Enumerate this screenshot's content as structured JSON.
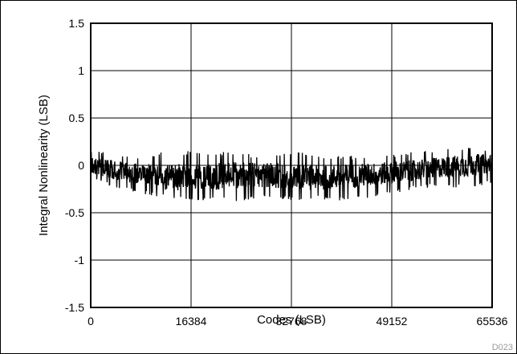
{
  "chart_data": {
    "type": "line",
    "title": "",
    "xlabel": "Codes (LSB)",
    "ylabel": "Integral Nonlinearity (LSB)",
    "xlim": [
      0,
      65536
    ],
    "ylim": [
      -1.5,
      1.5
    ],
    "x_ticks": [
      "0",
      "16384",
      "32768",
      "49152",
      "65536"
    ],
    "y_ticks": [
      "1.5",
      "1",
      "0.5",
      "0",
      "-0.5",
      "-1",
      "-1.5"
    ],
    "grid": true,
    "figure_code": "D023",
    "series": [
      {
        "color": "#000000",
        "x": [
          0,
          4096,
          8192,
          12288,
          16384,
          20480,
          24576,
          28672,
          32768,
          36864,
          40960,
          45056,
          49152,
          53248,
          57344,
          61440,
          65536
        ],
        "upper": [
          0.18,
          0.13,
          0.1,
          0.15,
          0.15,
          0.15,
          0.12,
          0.12,
          0.15,
          0.12,
          0.1,
          0.1,
          0.12,
          0.15,
          0.18,
          0.2,
          0.17
        ],
        "lower": [
          -0.12,
          -0.25,
          -0.3,
          -0.35,
          -0.38,
          -0.37,
          -0.38,
          -0.35,
          -0.37,
          -0.35,
          -0.38,
          -0.35,
          -0.3,
          -0.25,
          -0.22,
          -0.25,
          -0.18
        ],
        "median": [
          0.0,
          -0.05,
          -0.1,
          -0.12,
          -0.13,
          -0.12,
          -0.1,
          -0.1,
          -0.12,
          -0.13,
          -0.12,
          -0.1,
          -0.08,
          -0.05,
          -0.02,
          0.0,
          0.02
        ]
      }
    ]
  }
}
